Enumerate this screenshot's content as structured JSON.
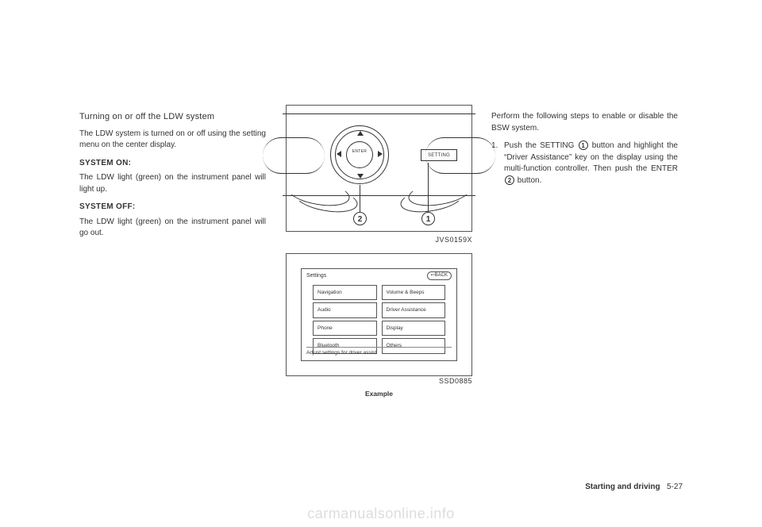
{
  "left": {
    "heading": "Turning on or off the LDW system",
    "intro": "The LDW system is turned on or off using the setting menu on the center display.",
    "on_label": "SYSTEM ON:",
    "on_text": "The LDW light (green) on the instrument panel will light up.",
    "off_label": "SYSTEM OFF:",
    "off_text": "The LDW light (green) on the instrument panel will go out."
  },
  "center": {
    "fig1": {
      "enter": "ENTER",
      "setting": "SETTING",
      "callout1": "1",
      "callout2": "2",
      "code": "JVS0159X"
    },
    "fig2": {
      "title": "Settings",
      "back": "↩BACK",
      "left_items": [
        "Navigation",
        "Audio",
        "Phone",
        "Bluetooth"
      ],
      "right_items": [
        "Volume & Beeps",
        "Driver Assistance",
        "Display",
        "Others"
      ],
      "status": "Adjust settings for driver assist",
      "code": "SSD0885",
      "caption": "Example"
    }
  },
  "right": {
    "intro": "Perform the following steps to enable or disable the BSW system.",
    "step1_num": "1.",
    "step1_a": "Push the SETTING ",
    "step1_ref1": "1",
    "step1_b": " button and highlight the “Driver Assistance” key on the display using the multi-function controller. Then push the ENTER ",
    "step1_ref2": "2",
    "step1_c": " button."
  },
  "footer": {
    "section": "Starting and driving",
    "page": "5-27"
  },
  "watermark": "carmanualsonline.info"
}
